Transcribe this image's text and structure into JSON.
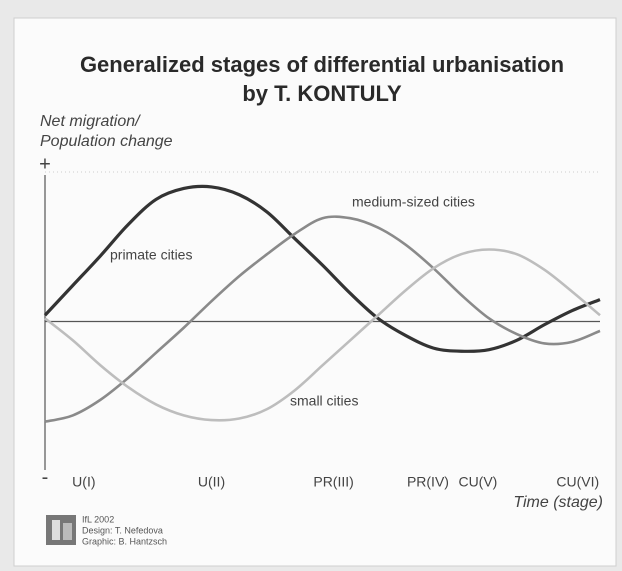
{
  "chart_data": {
    "type": "line",
    "title": "Generalized stages of differential urbanisation",
    "subtitle": "by T. KONTULY",
    "y_label": [
      "Net migration/",
      "Population change"
    ],
    "x_label": "Time (stage)",
    "x": [
      0,
      5,
      10,
      15,
      20,
      25,
      30,
      35,
      40,
      45,
      50,
      55,
      60,
      65,
      70,
      75,
      80,
      85,
      90,
      95,
      100
    ],
    "series": [
      {
        "name": "primate cities",
        "color": "#333333",
        "values": [
          0.04,
          0.23,
          0.42,
          0.62,
          0.78,
          0.85,
          0.86,
          0.81,
          0.7,
          0.53,
          0.36,
          0.18,
          0.02,
          -0.09,
          -0.17,
          -0.19,
          -0.18,
          -0.12,
          -0.02,
          0.07,
          0.14
        ]
      },
      {
        "name": "medium-sized cities",
        "color": "#8a8a8a",
        "values": [
          -0.64,
          -0.6,
          -0.5,
          -0.36,
          -0.2,
          -0.04,
          0.13,
          0.29,
          0.43,
          0.56,
          0.66,
          0.66,
          0.6,
          0.49,
          0.34,
          0.17,
          0.02,
          -0.08,
          -0.14,
          -0.13,
          -0.06
        ]
      },
      {
        "name": "small cities",
        "color": "#bdbdbd",
        "values": [
          0.02,
          -0.12,
          -0.28,
          -0.42,
          -0.53,
          -0.6,
          -0.63,
          -0.62,
          -0.56,
          -0.44,
          -0.28,
          -0.12,
          0.04,
          0.2,
          0.34,
          0.43,
          0.46,
          0.43,
          0.33,
          0.19,
          0.04
        ]
      }
    ],
    "xlim": [
      0,
      100
    ],
    "ylim": [
      -1,
      1
    ],
    "xticks": [
      {
        "value": 7,
        "label": "U(I)"
      },
      {
        "value": 30,
        "label": "U(II)"
      },
      {
        "value": 52,
        "label": "PR(III)"
      },
      {
        "value": 69,
        "label": "PR(IV)"
      },
      {
        "value": 78,
        "label": "CU(V)"
      },
      {
        "value": 96,
        "label": "CU(VI)"
      }
    ],
    "yticks": [
      {
        "value": 1,
        "label": "+"
      },
      {
        "value": -1,
        "label": "-"
      }
    ],
    "credits": [
      "IfL 2002",
      "Design: T. Nefedova",
      "Graphic: B. Hantzsch"
    ]
  }
}
